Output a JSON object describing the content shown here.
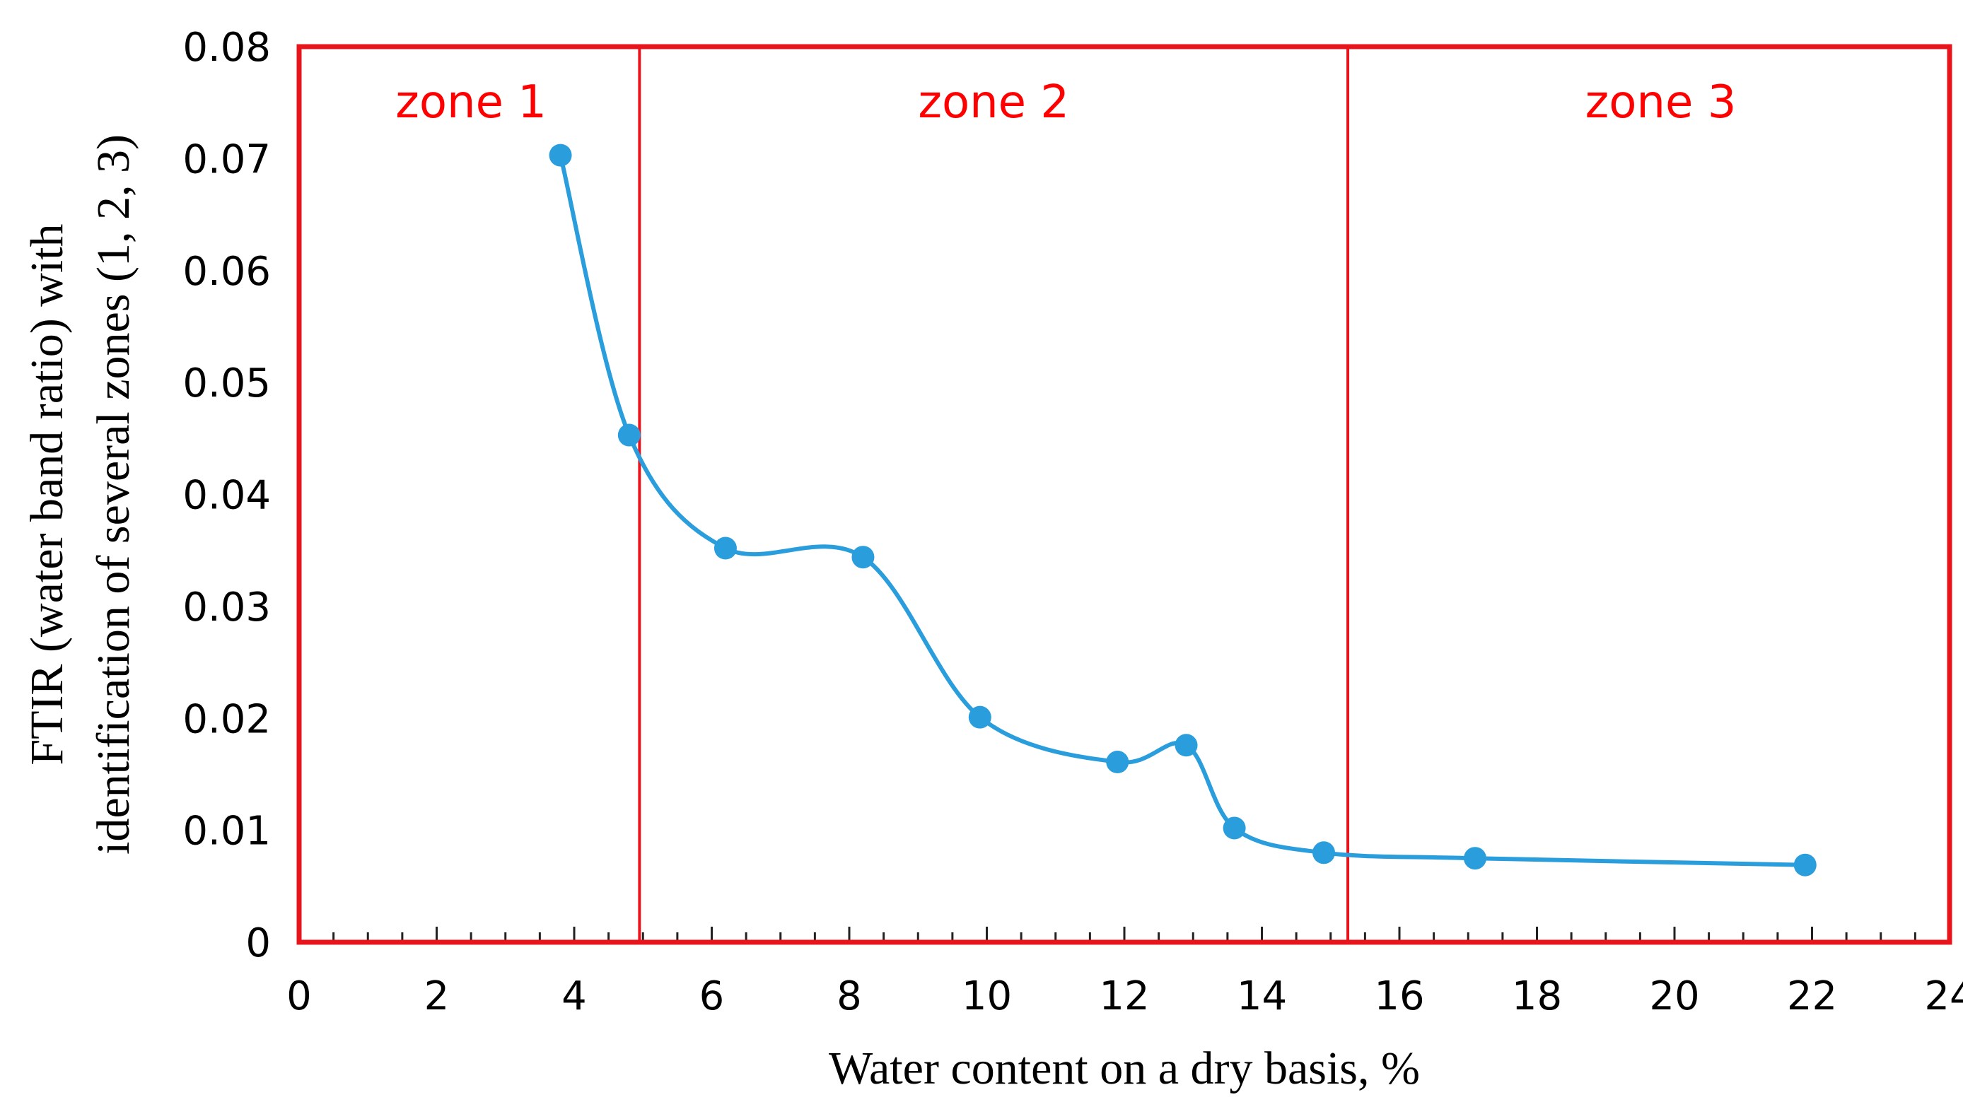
{
  "chart_data": {
    "type": "line",
    "title": "",
    "xlabel": "Water content on a dry basis, %",
    "ylabel_lines": [
      "FTIR (water band ratio) with",
      "identification of several zones (1, 2, 3)"
    ],
    "xlim": [
      0,
      24
    ],
    "ylim": [
      0,
      0.08
    ],
    "x_ticks": [
      0,
      2,
      4,
      6,
      8,
      10,
      12,
      14,
      16,
      18,
      20,
      22,
      24
    ],
    "x_tick_labels": [
      "0",
      "2",
      "4",
      "6",
      "8",
      "10",
      "12",
      "14",
      "16",
      "18",
      "20",
      "22",
      "24"
    ],
    "y_ticks": [
      0,
      0.01,
      0.02,
      0.03,
      0.04,
      0.05,
      0.06,
      0.07,
      0.08
    ],
    "y_tick_labels": [
      "0",
      "0.01",
      "0.02",
      "0.03",
      "0.04",
      "0.05",
      "0.06",
      "0.07",
      "0.08"
    ],
    "grid": false,
    "series": [
      {
        "name": "FTIR water band ratio",
        "color": "#2a9ddc",
        "smooth": true,
        "x": [
          3.8,
          4.8,
          6.2,
          8.2,
          9.9,
          11.9,
          12.9,
          13.6,
          14.9,
          17.1,
          21.9
        ],
        "y": [
          0.0703,
          0.0453,
          0.0352,
          0.0344,
          0.0201,
          0.0161,
          0.0176,
          0.0102,
          0.008,
          0.0075,
          0.0069
        ]
      }
    ],
    "zone_boundaries": [
      4.95,
      15.25
    ],
    "zones": [
      {
        "label": "zone 1",
        "x_center": 2.5
      },
      {
        "label": "zone 2",
        "x_center": 10.1
      },
      {
        "label": "zone 3",
        "x_center": 19.8
      }
    ],
    "frame_color": "#e8141c",
    "zone_label_color": "#ff0000"
  }
}
